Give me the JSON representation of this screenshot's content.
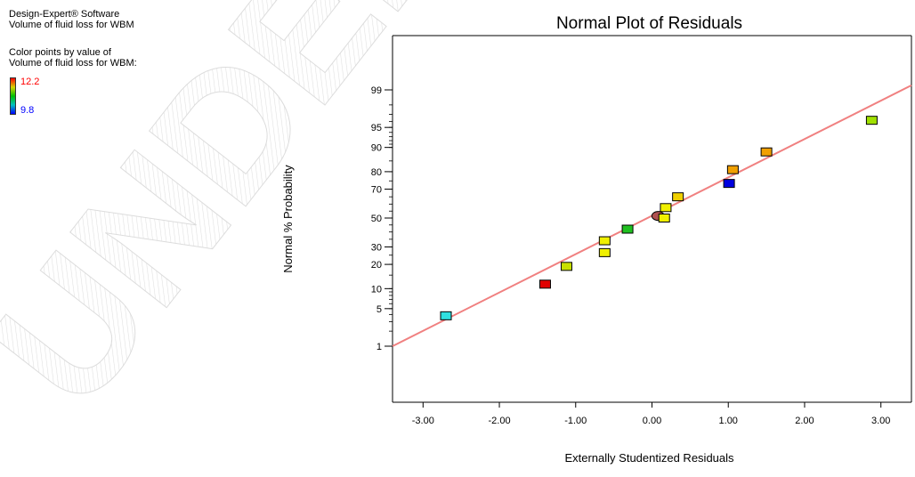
{
  "info": {
    "software": "Design-Expert® Software",
    "response": "Volume of fluid loss for WBM",
    "color_note": "Color points by value of",
    "color_response": "Volume of fluid loss for WBM:",
    "legend_high": "12.2",
    "legend_low": "9.8"
  },
  "watermark": {
    "text": "UNDER PEER REVIEW"
  },
  "colors": {
    "fit_line": "#f08080",
    "legend_high": "#ff0000",
    "legend_low": "#0000ff"
  },
  "chart_data": {
    "type": "scatter",
    "title": "Normal Plot of Residuals",
    "xlabel": "Externally Studentized Residuals",
    "ylabel": "Normal % Probability",
    "xlim": [
      -3.4,
      3.4
    ],
    "x_ticks": [
      "-3.00",
      "-2.00",
      "-1.00",
      "0.00",
      "1.00",
      "2.00",
      "3.00"
    ],
    "y_scale": "normal-probability",
    "y_ticks": [
      "1",
      "5",
      "10",
      "20",
      "30",
      "50",
      "70",
      "80",
      "90",
      "95",
      "99"
    ],
    "fit_line": {
      "from": [
        -3.4,
        1
      ],
      "to": [
        3.4,
        99.2
      ]
    },
    "points": [
      {
        "x": -2.7,
        "y": 3.8,
        "color": "#30e0e0"
      },
      {
        "x": -1.4,
        "y": 11.5,
        "color": "#e00000"
      },
      {
        "x": -1.12,
        "y": 19,
        "color": "#c8e000"
      },
      {
        "x": -0.62,
        "y": 26.5,
        "color": "#f0f000"
      },
      {
        "x": -0.62,
        "y": 34,
        "color": "#f0f000"
      },
      {
        "x": -0.32,
        "y": 42,
        "color": "#20c020"
      },
      {
        "x": 0.08,
        "y": 51.5,
        "color": "#b05050",
        "shape": "circle"
      },
      {
        "x": 0.16,
        "y": 50,
        "color": "#f0f000"
      },
      {
        "x": 0.18,
        "y": 57.5,
        "color": "#f0f000"
      },
      {
        "x": 0.34,
        "y": 65,
        "color": "#f0d000"
      },
      {
        "x": 1.01,
        "y": 73.5,
        "color": "#0000e0"
      },
      {
        "x": 1.06,
        "y": 81,
        "color": "#f0a000"
      },
      {
        "x": 1.5,
        "y": 88.5,
        "color": "#f0a000"
      },
      {
        "x": 2.88,
        "y": 96.2,
        "color": "#a0e000"
      }
    ]
  }
}
